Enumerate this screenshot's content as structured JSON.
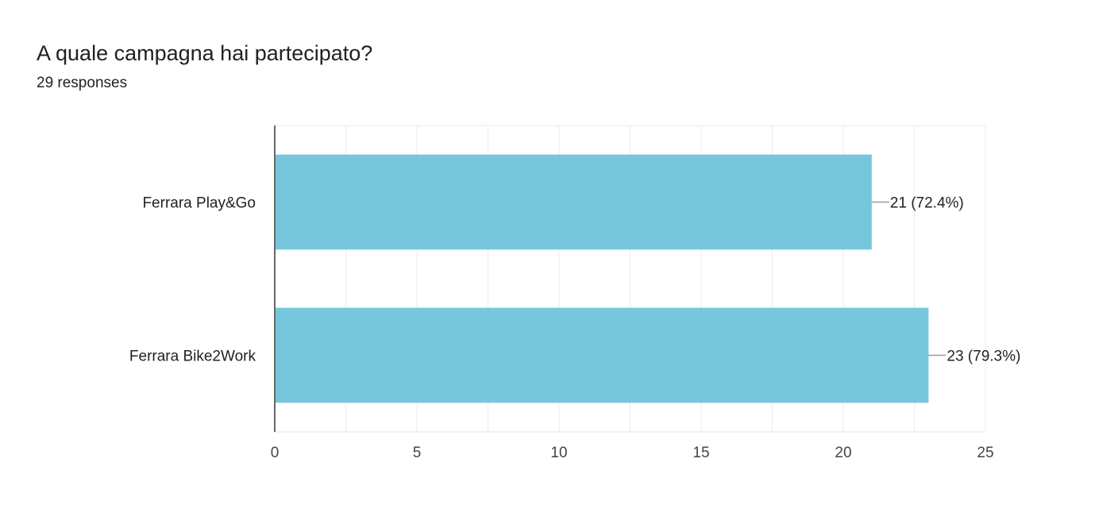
{
  "header": {
    "title": "A quale campagna hai partecipato?",
    "responses": "29 responses"
  },
  "chart_data": {
    "type": "bar",
    "orientation": "horizontal",
    "categories": [
      "Ferrara Play&Go",
      "Ferrara Bike2Work"
    ],
    "values": [
      21,
      23
    ],
    "data_labels": [
      "21 (72.4%)",
      "23 (79.3%)"
    ],
    "xlim": [
      0,
      25
    ],
    "x_ticks": [
      0,
      5,
      10,
      15,
      20,
      25
    ],
    "grid": true,
    "legend": "none",
    "bar_color": "#76c7dc"
  }
}
